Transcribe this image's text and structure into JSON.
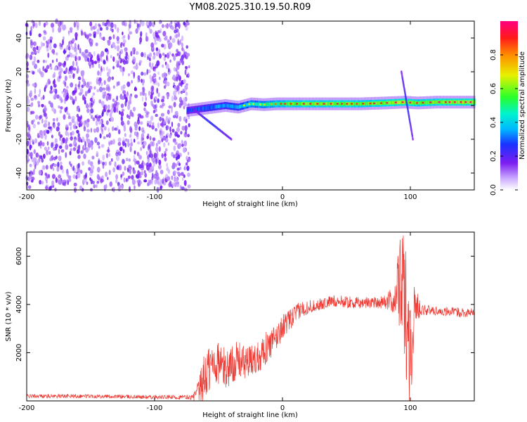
{
  "title": "YM08.2025.310.19.50.R09",
  "colors": {
    "snr_line": "#ee3a33",
    "axis": "#000000",
    "noise": "#7b1ef0"
  },
  "chart_data": [
    {
      "type": "heatmap",
      "xlabel": "Height of straight line (km)",
      "ylabel": "Frequency (Hz)",
      "xlim": [
        -200,
        150
      ],
      "ylim": [
        -50,
        50
      ],
      "x_ticks": [
        -200,
        -100,
        0,
        100
      ],
      "x_tick_labels": [
        "-200",
        "-100",
        "0",
        "100"
      ],
      "y_ticks": [
        -40,
        -20,
        0,
        20,
        40
      ],
      "y_tick_labels": [
        "-40",
        "-20",
        "0",
        "20",
        "40"
      ],
      "noise_region": {
        "x_from": -200,
        "x_to": -75,
        "amplitude": 0.25
      },
      "ridge": {
        "x": [
          -75,
          -65,
          -55,
          -45,
          -35,
          -25,
          -15,
          -5,
          5,
          20,
          40,
          60,
          80,
          95,
          105,
          120,
          150
        ],
        "frequency": [
          -3,
          -2,
          -1,
          0,
          -1,
          1,
          0.5,
          1,
          1,
          1,
          1,
          1,
          1.5,
          2,
          1.5,
          2,
          2
        ],
        "amplitude": [
          0.3,
          0.35,
          0.4,
          0.45,
          0.5,
          0.6,
          0.65,
          0.7,
          0.8,
          0.85,
          0.85,
          0.8,
          0.85,
          0.9,
          0.8,
          0.85,
          0.9
        ]
      },
      "spikes": [
        {
          "x": [
            -70,
            -40
          ],
          "frequency": [
            -2,
            -20
          ]
        },
        {
          "x": [
            93,
            102
          ],
          "frequency": [
            20,
            -20
          ]
        }
      ],
      "colorbar": {
        "label": "Normalized spectral amplitude",
        "range": [
          0,
          1
        ],
        "ticks": [
          0.0,
          0.2,
          0.4,
          0.6,
          0.8
        ],
        "tick_labels": [
          "0.0",
          "0.2",
          "0.4",
          "0.6",
          "0.8"
        ]
      }
    },
    {
      "type": "line",
      "xlabel": "Height of straight line (km)",
      "ylabel": "SNR (10 * v/v)",
      "xlim": [
        -200,
        150
      ],
      "ylim": [
        0,
        7000
      ],
      "x_ticks": [
        -200,
        -100,
        0,
        100
      ],
      "x_tick_labels": [
        "-200",
        "-100",
        "0",
        "100"
      ],
      "y_ticks": [
        2000,
        4000,
        6000
      ],
      "y_tick_labels": [
        "2000",
        "4000",
        "6000"
      ],
      "series": [
        {
          "name": "SNR",
          "x": [
            -200,
            -150,
            -100,
            -70,
            -65,
            -60,
            -55,
            -50,
            -45,
            -40,
            -35,
            -30,
            -25,
            -20,
            -15,
            -10,
            -5,
            0,
            5,
            10,
            15,
            20,
            25,
            30,
            40,
            50,
            60,
            70,
            80,
            88,
            92,
            96,
            100,
            104,
            108,
            115,
            130,
            150
          ],
          "values": [
            200,
            200,
            150,
            150,
            400,
            1100,
            1500,
            1600,
            1300,
            1500,
            1700,
            1600,
            1600,
            1800,
            2100,
            2300,
            2600,
            3100,
            3300,
            3600,
            3800,
            3900,
            3950,
            4000,
            4150,
            4100,
            4050,
            4100,
            4100,
            4200,
            5000,
            4000,
            2000,
            4000,
            3800,
            3750,
            3700,
            3650
          ],
          "noise_amplitude": [
            80,
            80,
            80,
            100,
            600,
            1200,
            1000,
            900,
            900,
            800,
            800,
            700,
            700,
            700,
            700,
            650,
            600,
            500,
            450,
            400,
            350,
            300,
            250,
            250,
            250,
            250,
            250,
            250,
            300,
            600,
            2200,
            2800,
            2500,
            900,
            250,
            200,
            200,
            200
          ]
        }
      ]
    }
  ]
}
